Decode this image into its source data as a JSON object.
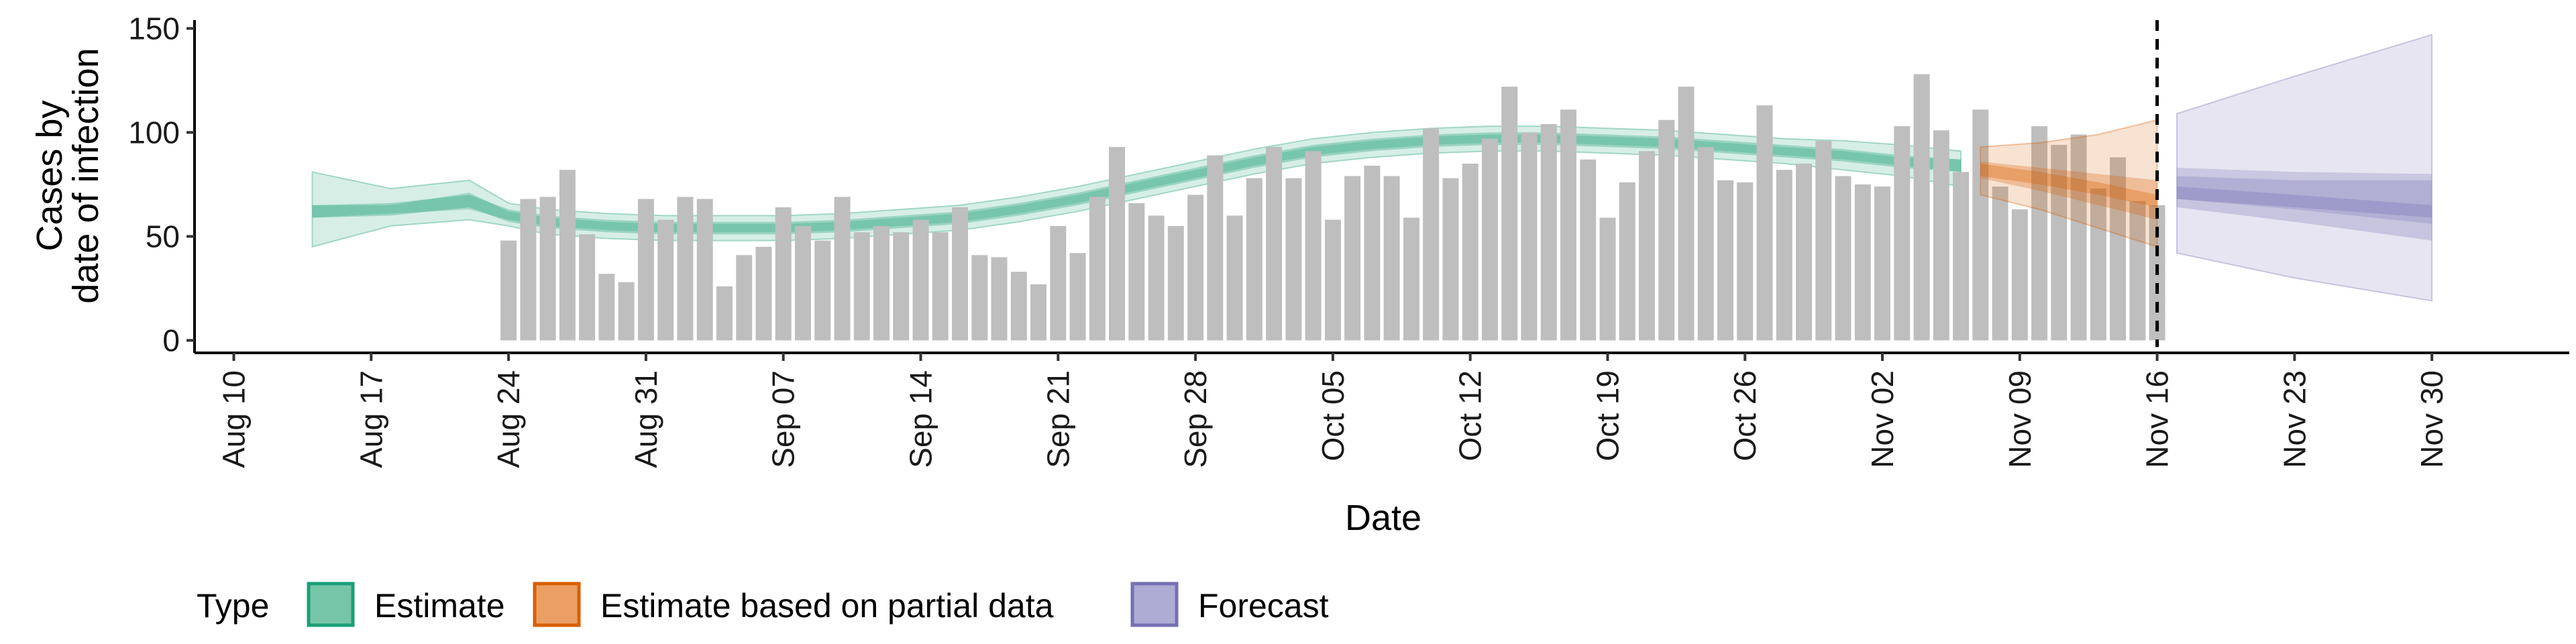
{
  "chart_data": {
    "type": "bar",
    "xlabel": "Date",
    "ylabel_lines": [
      "Cases by",
      "date of infection"
    ],
    "ylim": [
      -6,
      154
    ],
    "yticks": [
      0,
      50,
      100,
      150
    ],
    "xticks": [
      {
        "date": "2020-08-10",
        "label": "Aug 10"
      },
      {
        "date": "2020-08-17",
        "label": "Aug 17"
      },
      {
        "date": "2020-08-24",
        "label": "Aug 24"
      },
      {
        "date": "2020-08-31",
        "label": "Aug 31"
      },
      {
        "date": "2020-09-07",
        "label": "Sep 07"
      },
      {
        "date": "2020-09-14",
        "label": "Sep 14"
      },
      {
        "date": "2020-09-21",
        "label": "Sep 21"
      },
      {
        "date": "2020-09-28",
        "label": "Sep 28"
      },
      {
        "date": "2020-10-05",
        "label": "Oct 05"
      },
      {
        "date": "2020-10-12",
        "label": "Oct 12"
      },
      {
        "date": "2020-10-19",
        "label": "Oct 19"
      },
      {
        "date": "2020-10-26",
        "label": "Oct 26"
      },
      {
        "date": "2020-11-02",
        "label": "Nov 02"
      },
      {
        "date": "2020-11-09",
        "label": "Nov 09"
      },
      {
        "date": "2020-11-16",
        "label": "Nov 16"
      },
      {
        "date": "2020-11-23",
        "label": "Nov 23"
      },
      {
        "date": "2020-11-30",
        "label": "Nov 30"
      }
    ],
    "xlim": [
      "2020-08-08",
      "2020-12-07"
    ],
    "reference_line": {
      "date": "2020-11-16",
      "style": "dashed",
      "color": "#000000"
    },
    "observed_cases": {
      "name": "Observed cases",
      "color": "#bebebe",
      "dates": [
        "2020-08-24",
        "2020-08-25",
        "2020-08-26",
        "2020-08-27",
        "2020-08-28",
        "2020-08-29",
        "2020-08-30",
        "2020-08-31",
        "2020-09-01",
        "2020-09-02",
        "2020-09-03",
        "2020-09-04",
        "2020-09-05",
        "2020-09-06",
        "2020-09-07",
        "2020-09-08",
        "2020-09-09",
        "2020-09-10",
        "2020-09-11",
        "2020-09-12",
        "2020-09-13",
        "2020-09-14",
        "2020-09-15",
        "2020-09-16",
        "2020-09-17",
        "2020-09-18",
        "2020-09-19",
        "2020-09-20",
        "2020-09-21",
        "2020-09-22",
        "2020-09-23",
        "2020-09-24",
        "2020-09-25",
        "2020-09-26",
        "2020-09-27",
        "2020-09-28",
        "2020-09-29",
        "2020-09-30",
        "2020-10-01",
        "2020-10-02",
        "2020-10-03",
        "2020-10-04",
        "2020-10-05",
        "2020-10-06",
        "2020-10-07",
        "2020-10-08",
        "2020-10-09",
        "2020-10-10",
        "2020-10-11",
        "2020-10-12",
        "2020-10-13",
        "2020-10-14",
        "2020-10-15",
        "2020-10-16",
        "2020-10-17",
        "2020-10-18",
        "2020-10-19",
        "2020-10-20",
        "2020-10-21",
        "2020-10-22",
        "2020-10-23",
        "2020-10-24",
        "2020-10-25",
        "2020-10-26",
        "2020-10-27",
        "2020-10-28",
        "2020-10-29",
        "2020-10-30",
        "2020-10-31",
        "2020-11-01",
        "2020-11-02",
        "2020-11-03",
        "2020-11-04",
        "2020-11-05",
        "2020-11-06",
        "2020-11-07",
        "2020-11-08",
        "2020-11-09",
        "2020-11-10",
        "2020-11-11",
        "2020-11-12",
        "2020-11-13",
        "2020-11-14",
        "2020-11-15",
        "2020-11-16"
      ],
      "values": [
        48,
        68,
        69,
        82,
        51,
        32,
        28,
        68,
        58,
        69,
        68,
        26,
        41,
        45,
        64,
        55,
        48,
        69,
        52,
        55,
        52,
        58,
        52,
        64,
        41,
        40,
        33,
        27,
        55,
        42,
        69,
        93,
        66,
        60,
        55,
        70,
        89,
        60,
        78,
        93,
        78,
        91,
        58,
        79,
        84,
        79,
        59,
        102,
        78,
        85,
        97,
        122,
        100,
        104,
        111,
        87,
        59,
        76,
        91,
        106,
        122,
        93,
        77,
        76,
        113,
        82,
        85,
        96,
        79,
        75,
        74,
        103,
        128,
        101,
        81,
        111,
        74,
        63,
        103,
        94,
        99,
        73,
        88,
        67,
        65
      ]
    },
    "series": [
      {
        "name": "Estimate",
        "color": "#1b9e77",
        "dates": [
          "2020-08-14",
          "2020-08-18",
          "2020-08-22",
          "2020-08-24",
          "2020-08-26",
          "2020-08-29",
          "2020-09-01",
          "2020-09-04",
          "2020-09-07",
          "2020-09-10",
          "2020-09-13",
          "2020-09-16",
          "2020-09-19",
          "2020-09-22",
          "2020-09-25",
          "2020-09-28",
          "2020-10-01",
          "2020-10-04",
          "2020-10-07",
          "2020-10-10",
          "2020-10-13",
          "2020-10-16",
          "2020-10-19",
          "2020-10-22",
          "2020-10-25",
          "2020-10-28",
          "2020-10-31",
          "2020-11-03",
          "2020-11-06"
        ],
        "median": [
          62,
          63,
          67,
          60,
          57,
          55,
          54,
          54,
          54,
          55,
          57,
          59,
          63,
          68,
          74,
          80,
          86,
          91,
          94,
          96,
          97,
          97,
          96,
          95,
          93,
          91,
          89,
          86,
          84
        ],
        "ci50_lower": [
          59,
          61,
          63,
          58,
          55,
          53,
          52,
          52,
          52,
          53,
          55,
          57,
          61,
          66,
          72,
          78,
          84,
          89,
          92,
          94,
          95,
          95,
          94,
          93,
          91,
          89,
          87,
          84,
          81
        ],
        "ci50_upper": [
          65,
          65,
          71,
          62,
          59,
          57,
          56,
          56,
          56,
          57,
          59,
          61,
          65,
          70,
          76,
          82,
          88,
          93,
          96,
          98,
          99,
          99,
          98,
          97,
          95,
          93,
          91,
          88,
          87
        ],
        "ci90_lower": [
          45,
          55,
          58,
          55,
          51,
          49,
          48,
          48,
          48,
          49,
          51,
          53,
          57,
          62,
          68,
          74,
          80,
          85,
          88,
          90,
          91,
          91,
          90,
          89,
          87,
          85,
          82,
          79,
          74
        ],
        "ci90_upper": [
          81,
          73,
          77,
          66,
          63,
          61,
          60,
          60,
          60,
          61,
          63,
          65,
          69,
          74,
          80,
          86,
          92,
          97,
          100,
          102,
          103,
          103,
          102,
          101,
          99,
          97,
          96,
          94,
          91
        ]
      },
      {
        "name": "Estimate based on partial data",
        "color": "#d95f02",
        "dates": [
          "2020-11-07",
          "2020-11-10",
          "2020-11-13",
          "2020-11-16"
        ],
        "median": [
          82,
          78,
          73,
          67
        ],
        "ci50_lower": [
          78,
          72,
          65,
          58
        ],
        "ci50_upper": [
          86,
          83,
          80,
          77
        ],
        "ci90_lower": [
          70,
          63,
          54,
          45
        ],
        "ci90_upper": [
          93,
          95,
          99,
          106
        ]
      },
      {
        "name": "Forecast",
        "color": "#7570b3",
        "dates": [
          "2020-11-17",
          "2020-11-23",
          "2020-11-30"
        ],
        "median": [
          71,
          67,
          62
        ],
        "ci50_lower": [
          64,
          57,
          48
        ],
        "ci50_upper": [
          79,
          77,
          77
        ],
        "ci90_lower": [
          42,
          30,
          19
        ],
        "ci90_upper": [
          109,
          127,
          147
        ],
        "ci30_lower": [
          68,
          63,
          56
        ],
        "ci30_upper": [
          83,
          81,
          80
        ]
      }
    ],
    "legend": {
      "title": "Type",
      "position": "bottom",
      "entries": [
        {
          "label": "Estimate",
          "color": "#1b9e77"
        },
        {
          "label": "Estimate based on partial data",
          "color": "#d95f02"
        },
        {
          "label": "Forecast",
          "color": "#7570b3"
        }
      ]
    },
    "grid": false
  }
}
